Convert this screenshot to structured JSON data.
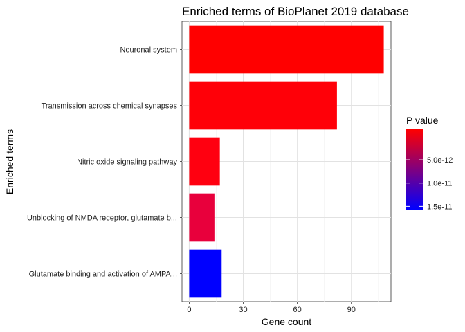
{
  "chart_data": {
    "type": "bar",
    "orientation": "horizontal",
    "title": "Enriched terms of BioPlanet 2019 database",
    "xlabel": "Gene count",
    "ylabel": "Enriched terms",
    "xlim": [
      -4,
      112
    ],
    "xticks": [
      0,
      30,
      60,
      90
    ],
    "grid": true,
    "categories": [
      "Neuronal system",
      "Transmission across chemical synapses",
      "Nitric oxide signaling pathway",
      "Unblocking of NMDA receptor, glutamate b...",
      "Glutamate binding and activation of AMPA..."
    ],
    "values": [
      108,
      82,
      17,
      14,
      18
    ],
    "bar_colors": [
      "#FF0000",
      "#FF0008",
      "#FF0010",
      "#E8003C",
      "#0000FF"
    ],
    "legend": {
      "title": "P value",
      "placement": "right",
      "gradient_top": "#FF0000",
      "gradient_bottom": "#0000FF",
      "ticks": [
        {
          "label": "5.0e-12",
          "position": 0.38
        },
        {
          "label": "1.0e-11",
          "position": 0.67
        },
        {
          "label": "1.5e-11",
          "position": 0.96
        }
      ]
    }
  }
}
